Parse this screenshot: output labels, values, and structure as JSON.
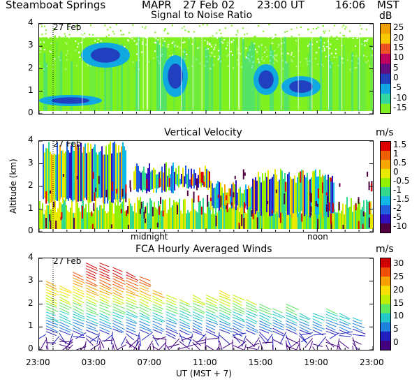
{
  "header": {
    "site": "Steamboat Springs",
    "instrument": "MAPR",
    "date": "27 Feb 02",
    "ut_time": "23:00 UT",
    "local_time": "16:06",
    "zone": "MST"
  },
  "x_axis": {
    "ticks": [
      "23:00",
      "03:00",
      "07:00",
      "11:00",
      "15:00",
      "19:00",
      "23:00"
    ],
    "label": "UT  (MST + 7)",
    "landmarks": [
      "midnight",
      "noon"
    ]
  },
  "chart_data": [
    {
      "type": "heatmap",
      "title": "Signal to Noise Ratio",
      "unit": "dB",
      "date_marker": "27 Feb",
      "y_ticks": [
        "4",
        "3",
        "2",
        "1",
        "0"
      ],
      "ylim": [
        0,
        4
      ],
      "colorbar": {
        "labels": [
          "25",
          "20",
          "15",
          "10",
          "5",
          "0",
          "-5",
          "-10",
          "-15"
        ],
        "colors": [
          "#f0a000",
          "#f8c800",
          "#f05028",
          "#c00060",
          "#601080",
          "#2040c0",
          "#10a8e0",
          "#30d8a0",
          "#80f020"
        ]
      }
    },
    {
      "type": "heatmap",
      "title": "Vertical Velocity",
      "unit": "m/s",
      "y_label": "Altitude (km)",
      "date_marker": "27 Feb",
      "y_ticks": [
        "4",
        "3",
        "2",
        "1",
        "0"
      ],
      "ylim": [
        0,
        4
      ],
      "colorbar": {
        "labels": [
          "1.5",
          "1",
          "0.5",
          "0",
          "-0.5",
          "-1",
          "-1.5",
          "-2",
          "-5",
          "-10"
        ],
        "colors": [
          "#e00000",
          "#f06000",
          "#f8a800",
          "#e8e800",
          "#90f000",
          "#30d890",
          "#10b8e8",
          "#2060e0",
          "#3010c0",
          "#500040"
        ]
      }
    },
    {
      "type": "scatter",
      "title": "FCA Hourly Averaged Winds",
      "unit": "m/s",
      "date_marker": "27 Feb",
      "y_ticks": [
        "4",
        "3",
        "2",
        "1",
        "0"
      ],
      "ylim": [
        0,
        4
      ],
      "colorbar": {
        "labels": [
          "30",
          "25",
          "20",
          "15",
          "10",
          "5",
          "0"
        ],
        "colors": [
          "#d00000",
          "#f05000",
          "#f8a000",
          "#f8e000",
          "#c0f000",
          "#60e860",
          "#20c8c8",
          "#2080e0",
          "#2020c0",
          "#400080"
        ]
      }
    }
  ]
}
